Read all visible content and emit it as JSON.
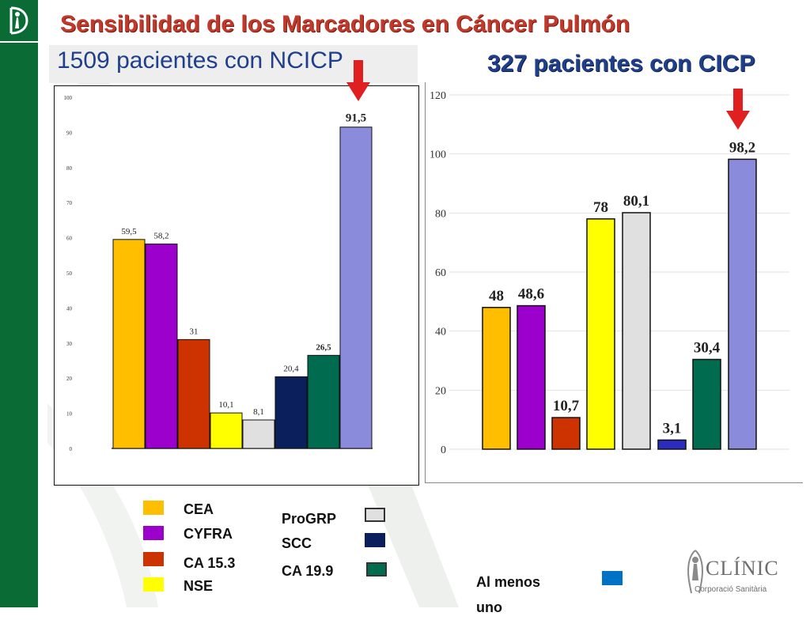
{
  "title": "Sensibilidad de los Marcadores en Cáncer Pulmón",
  "subtitle_left": "1509 pacientes con NCICP",
  "subtitle_right": "327 pacientes con CICP",
  "legend": [
    {
      "label": "CEA",
      "color": "#FFBF00"
    },
    {
      "label": "CYFRA",
      "color": "#9B00CC"
    },
    {
      "label": "CA 15.3",
      "color": "#CC3300"
    },
    {
      "label": "NSE",
      "color": "#FFFF00"
    },
    {
      "label": "ProGRP",
      "color": "#E0E0E0"
    },
    {
      "label": "SCC",
      "color": "#0A1F5C"
    },
    {
      "label": "CA 19.9",
      "color": "#006B4F"
    },
    {
      "label": "Al menos uno",
      "color": "#0072C6"
    }
  ],
  "logo_text": {
    "name": "CLÍNIC",
    "sub": "Corporació Sanitària"
  },
  "chart_data": [
    {
      "type": "bar",
      "title": "1509 pacientes con NCICP",
      "categories": [
        "CEA",
        "CYFRA",
        "CA 15.3",
        "NSE",
        "ProGRP",
        "SCC",
        "CA 19.9",
        "Al menos uno"
      ],
      "values": [
        59.5,
        58.2,
        31,
        10.1,
        8.1,
        20.4,
        26.5,
        91.5
      ],
      "value_labels": [
        "59,5",
        "58,2",
        "31",
        "10,1",
        "8,1",
        "20,4",
        "26,5",
        "91,5"
      ],
      "colors": [
        "#FFBF00",
        "#9B00CC",
        "#CC3300",
        "#FFFF00",
        "#E0E0E0",
        "#0A1F5C",
        "#006B4F",
        "#8B8BDB"
      ],
      "ylim": [
        0,
        100
      ],
      "yticks": [
        0,
        10,
        20,
        30,
        40,
        50,
        60,
        70,
        80,
        90,
        100
      ],
      "grid": false,
      "highlight": "Al menos uno"
    },
    {
      "type": "bar",
      "title": "327 pacientes con CICP",
      "categories": [
        "CEA",
        "CYFRA",
        "CA 15.3",
        "NSE",
        "ProGRP",
        "SCC",
        "CA 19.9",
        "Al menos uno"
      ],
      "values": [
        48,
        48.6,
        10.7,
        78,
        80.1,
        3.1,
        30.4,
        98.2
      ],
      "value_labels": [
        "48",
        "48,6",
        "10,7",
        "78",
        "80,1",
        "3,1",
        "30,4",
        "98,2"
      ],
      "colors": [
        "#FFBF00",
        "#9B00CC",
        "#CC3300",
        "#FFFF00",
        "#E0E0E0",
        "#2B2BC0",
        "#006B4F",
        "#8B8BDB"
      ],
      "ylim": [
        0,
        120
      ],
      "yticks": [
        0,
        20,
        40,
        60,
        80,
        100,
        120
      ],
      "grid": true,
      "highlight": "Al menos uno"
    }
  ]
}
